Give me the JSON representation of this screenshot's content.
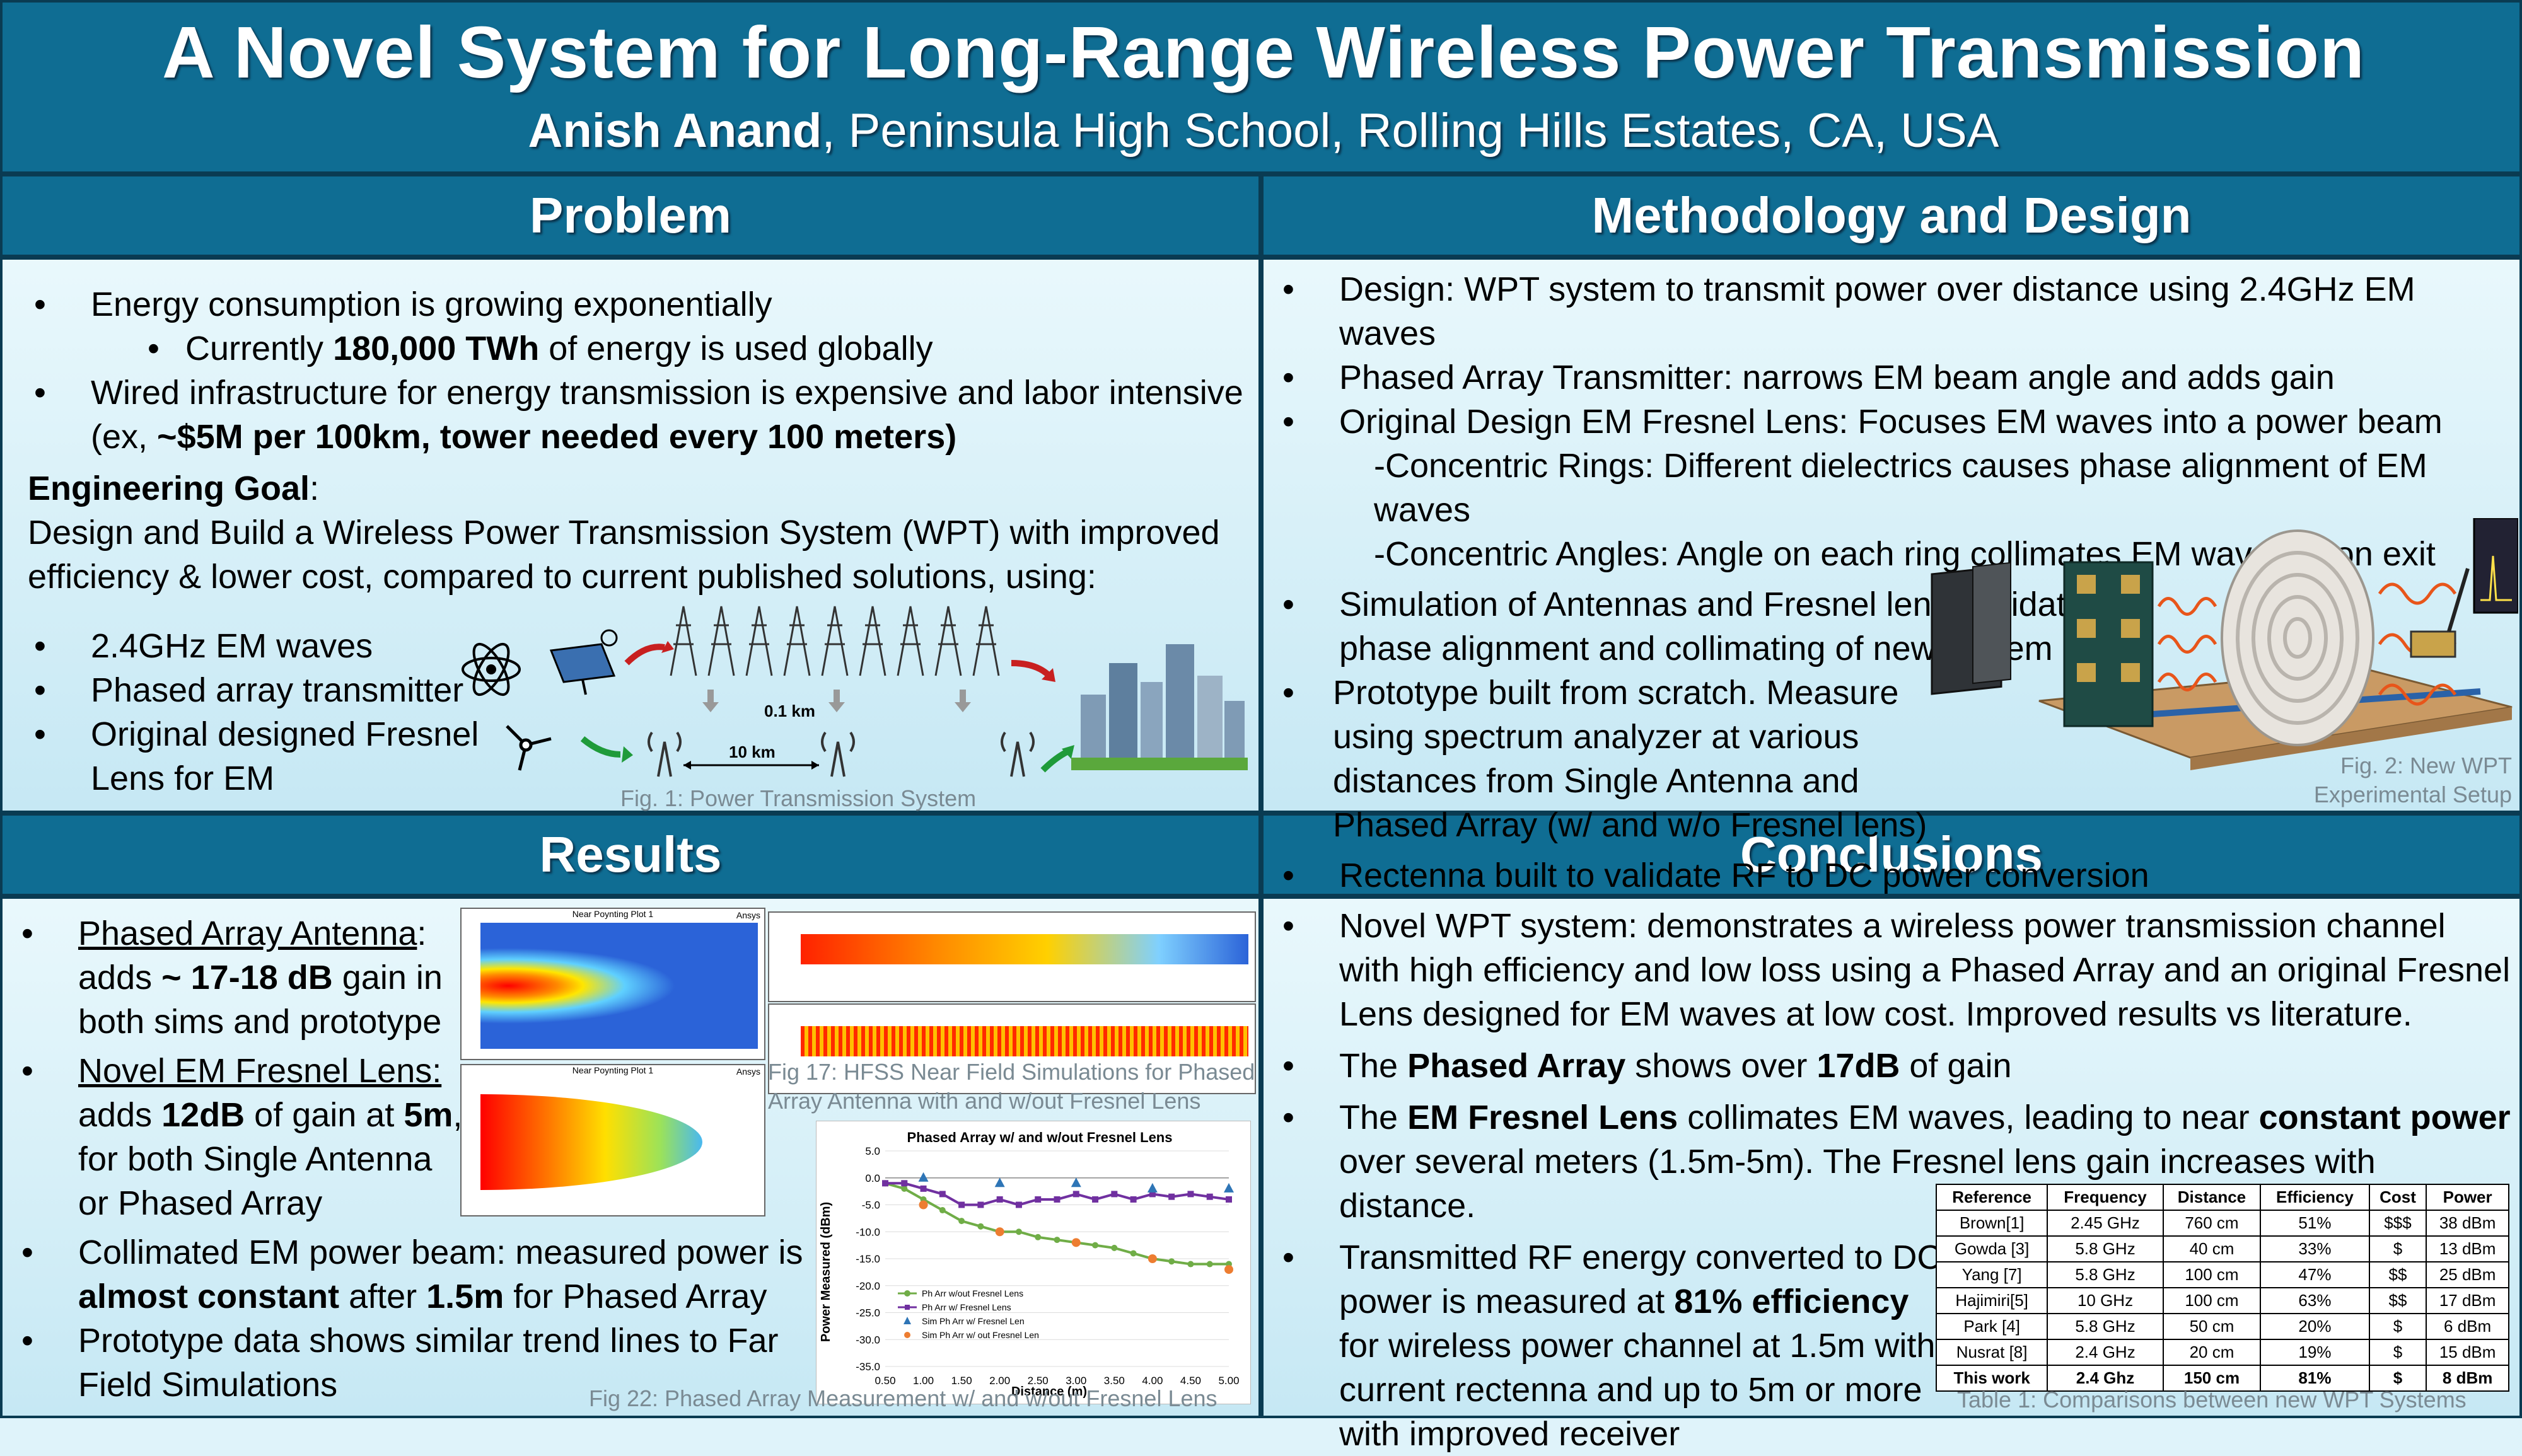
{
  "header": {
    "title": "A Novel System for Long-Range Wireless Power Transmission",
    "author": "Anish Anand",
    "affiliation": ", Peninsula High School, Rolling Hills Estates, CA, USA"
  },
  "problem": {
    "heading": "Problem",
    "b1": "Energy consumption is growing exponentially",
    "sub1_pre": "Currently ",
    "sub1_bold": "180,000 TWh",
    "sub1_post": " of energy is used globally",
    "b2_pre": "Wired infrastructure for energy transmission is expensive and labor intensive (ex, ",
    "b2_bold": "~$5M per 100km, tower needed every 100 meters)",
    "goal_label": "Engineering Goal",
    "goal_colon": ":",
    "goal_text": "Design and Build a Wireless Power Transmission System (WPT) with improved efficiency & lower cost, compared to current published solutions, using:",
    "items": [
      "2.4GHz EM waves",
      "Phased array transmitter",
      "Original designed Fresnel Lens for EM"
    ],
    "fig_label_1": "0.1 km",
    "fig_label_2": "10 km",
    "fig_caption": "Fig. 1: Power Transmission System"
  },
  "methodology": {
    "heading": "Methodology and Design",
    "b1": "Design: WPT system to transmit power over distance using 2.4GHz EM waves",
    "b2": "Phased Array Transmitter: narrows EM beam angle and adds gain",
    "b3": "Original Design EM Fresnel Lens: Focuses EM waves into a power beam",
    "s1": "-Concentric Rings: Different dielectrics causes phase alignment of EM waves",
    "s2": "-Concentric Angles: Angle on each ring collimates EM waves upon exit",
    "b4": "Simulation of Antennas and Fresnel lens: validate phase alignment and collimating of new system",
    "b5": "Prototype built from scratch. Measure using spectrum analyzer at various distances from Single Antenna and Phased Array (w/ and w/o Fresnel lens)",
    "b6": "Rectenna built to validate RF to DC power conversion",
    "fig_caption_1": "Fig. 2: New WPT",
    "fig_caption_2": "Experimental Setup"
  },
  "results": {
    "heading": "Results",
    "r1_u": "Phased Array Antenna",
    "r1_a": ":",
    "r1_b": "adds ",
    "r1_bold": "~ 17-18 dB",
    "r1_c": " gain in both sims and prototype",
    "r2_u": "Novel EM Fresnel Lens:",
    "r2_a": "adds ",
    "r2_bold1": "12dB",
    "r2_b": " of gain at ",
    "r2_bold2": "5m",
    "r2_c": ", for both Single Antenna or Phased Array",
    "r3_a": "Collimated EM power beam: measured power is ",
    "r3_bold1": "almost constant",
    "r3_b": " after ",
    "r3_bold2": "1.5m",
    "r3_c": " for Phased Array",
    "r4": "Prototype data shows similar trend lines to Far Field Simulations",
    "sim_title": "Near Poynting Plot 1",
    "sim_brand": "Ansys",
    "fig17_caption": "Fig 17: HFSS Near Field Simulations for Phased Array Antenna with and w/out Fresnel Lens",
    "fig22_caption": "Fig 22: Phased Array Measurement w/ and w/out Fresnel Lens"
  },
  "chart_data": {
    "type": "line",
    "title": "Phased Array w/ and w/out Fresnel Lens",
    "xlabel": "Distance (m)",
    "ylabel": "Power Measured (dBm)",
    "x": [
      0.5,
      1.0,
      1.5,
      2.0,
      2.5,
      3.0,
      3.5,
      4.0,
      4.5,
      5.0
    ],
    "xticks": [
      "0.50",
      "1.00",
      "1.50",
      "2.00",
      "2.50",
      "3.00",
      "3.50",
      "4.00",
      "4.50",
      "5.00"
    ],
    "yticks": [
      "5.0",
      "0.0",
      "-5.0",
      "-10.0",
      "-15.0",
      "-20.0",
      "-25.0",
      "-30.0",
      "-35.0"
    ],
    "xlim": [
      0.5,
      5.0
    ],
    "ylim": [
      -35,
      5
    ],
    "legend_position": "bottom-left",
    "series": [
      {
        "name": "Ph Arr w/out Fresnel Lens",
        "color": "#70ad47",
        "marker": "circle",
        "line": true,
        "x": [
          0.5,
          0.75,
          1.0,
          1.25,
          1.5,
          1.75,
          2.0,
          2.25,
          2.5,
          2.75,
          3.0,
          3.25,
          3.5,
          3.75,
          4.0,
          4.25,
          4.5,
          4.75,
          5.0
        ],
        "values": [
          -1,
          -2,
          -4,
          -6,
          -8,
          -9,
          -10,
          -10,
          -11,
          -11.5,
          -12,
          -12.5,
          -13,
          -14,
          -15,
          -15.5,
          -16,
          -16,
          -16
        ]
      },
      {
        "name": "Ph Arr w/ Fresnel Lens",
        "color": "#7030a0",
        "marker": "square",
        "line": true,
        "x": [
          0.5,
          0.75,
          1.0,
          1.25,
          1.5,
          1.75,
          2.0,
          2.25,
          2.5,
          2.75,
          3.0,
          3.25,
          3.5,
          3.75,
          4.0,
          4.25,
          4.5,
          4.75,
          5.0
        ],
        "values": [
          -1,
          -1,
          -2,
          -3,
          -5,
          -5,
          -4,
          -5,
          -4,
          -4,
          -3,
          -4,
          -3,
          -4,
          -3,
          -3.5,
          -3,
          -3.5,
          -4
        ]
      },
      {
        "name": "Sim Ph Arr w/ Fresnel Len",
        "color": "#2e75b6",
        "marker": "triangle",
        "line": false,
        "x": [
          1.0,
          2.0,
          3.0,
          4.0,
          5.0
        ],
        "values": [
          0,
          -1,
          -1,
          -2,
          -2
        ]
      },
      {
        "name": "Sim Ph Arr w/ out Fresnel Len",
        "color": "#ed7d31",
        "marker": "circle",
        "line": false,
        "x": [
          1.0,
          2.0,
          3.0,
          4.0,
          5.0
        ],
        "values": [
          -5,
          -10,
          -12,
          -15,
          -17
        ]
      }
    ]
  },
  "conclusions": {
    "heading": "Conclusions",
    "c1": "Novel WPT system: demonstrates a wireless power transmission channel with high efficiency and low loss using a Phased Array and an original Fresnel Lens designed for EM waves at low cost. Improved results vs literature.",
    "c2_a": "The ",
    "c2_bold1": "Phased Array",
    "c2_b": " shows over ",
    "c2_bold2": "17dB",
    "c2_c": " of gain",
    "c3_a": "The ",
    "c3_bold1": "EM Fresnel Lens",
    "c3_b": " collimates EM waves, leading to near ",
    "c3_bold2": "constant power",
    "c3_c": " over several meters (1.5m-5m). The Fresnel lens gain increases with distance.",
    "c4_a": "Transmitted RF energy converted to DC power is measured at ",
    "c4_bold": "81% efficiency",
    "c4_b": " for wireless power channel at 1.5m with current rectenna and up to 5m or more with improved receiver",
    "table_caption": "Table 1: Comparisons between new WPT Systems",
    "table": {
      "headers": [
        "Reference",
        "Frequency",
        "Distance",
        "Efficiency",
        "Cost",
        "Power"
      ],
      "rows": [
        [
          "Brown[1]",
          "2.45 GHz",
          "760 cm",
          "51%",
          "$$$",
          "38 dBm"
        ],
        [
          "Gowda [3]",
          "5.8 GHz",
          "40 cm",
          "33%",
          "$",
          "13 dBm"
        ],
        [
          "Yang [7]",
          "5.8 GHz",
          "100 cm",
          "47%",
          "$$",
          "25 dBm"
        ],
        [
          "Hajimiri[5]",
          "10 GHz",
          "100 cm",
          "63%",
          "$$",
          "17 dBm"
        ],
        [
          "Park [4]",
          "5.8 GHz",
          "50 cm",
          "20%",
          "$",
          "6 dBm"
        ],
        [
          "Nusrat [8]",
          "2.4 GHz",
          "20 cm",
          "19%",
          "$",
          "15 dBm"
        ],
        [
          "This work",
          "2.4 Ghz",
          "150 cm",
          "81%",
          "$",
          "8 dBm"
        ]
      ]
    }
  }
}
